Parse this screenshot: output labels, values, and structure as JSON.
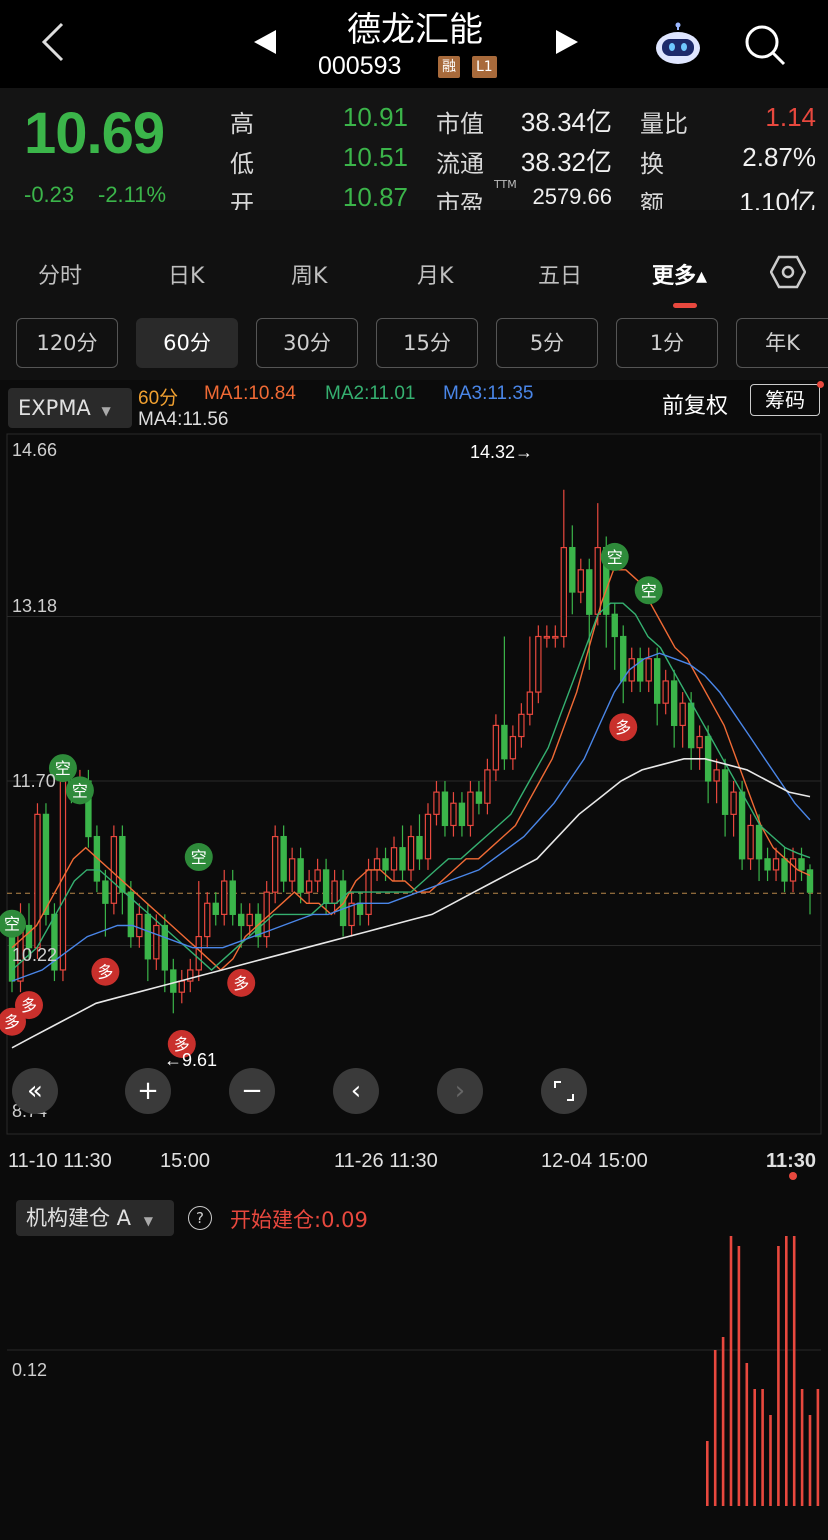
{
  "header": {
    "stock_name": "德龙汇能",
    "stock_code": "000593",
    "tag_margin": "融",
    "tag_level": "L1",
    "back_icon": "chevron-left-icon",
    "prev_icon": "triangle-left-icon",
    "next_icon": "triangle-right-icon",
    "assistant_icon": "robot-icon",
    "search_icon": "search-icon"
  },
  "quote": {
    "price": "10.69",
    "change": "-0.23",
    "change_pct": "-2.11%",
    "high_label": "高",
    "high": "10.91",
    "low_label": "低",
    "low": "10.51",
    "open_label": "开",
    "open": "10.87",
    "mcap_label": "市值",
    "mcap": "38.34亿",
    "float_label": "流通",
    "float": "38.32亿",
    "pe_label": "市盈",
    "pe_sup": "TTM",
    "pe": "2579.66",
    "vol_ratio_label": "量比",
    "vol_ratio": "1.14",
    "turnover_label": "换",
    "turnover": "2.87%",
    "amount_label": "额",
    "amount": "1.10亿"
  },
  "tabs": [
    "分时",
    "日K",
    "周K",
    "月K",
    "五日",
    "更多▴"
  ],
  "settings_icon": "hexagon-settings-icon",
  "periods": [
    "120分",
    "60分",
    "30分",
    "15分",
    "5分",
    "1分",
    "年K"
  ],
  "selected_period": "60分",
  "indicator": {
    "name": "EXPMA",
    "period": "60分",
    "ma1": "MA1:10.84",
    "ma2": "MA2:11.01",
    "ma3": "MA3:11.35",
    "ma4": "MA4:11.56",
    "adjust": "前复权",
    "chip": "筹码"
  },
  "colors": {
    "up": "#e8483e",
    "down": "#3bb54a",
    "ma1": "#f06a35",
    "ma2": "#35b070",
    "ma3": "#4a86e8",
    "ma4": "#e8e8e8",
    "mark_empty": "#2e8b3a",
    "mark_more": "#c9302c"
  },
  "chart_data": {
    "type": "candlestick",
    "y_axis_labels": [
      "14.66",
      "13.18",
      "11.70",
      "10.22",
      "8.74"
    ],
    "ylim": [
      8.74,
      14.66
    ],
    "x_axis_labels": [
      "11-10 11:30",
      "15:00",
      "11-26 11:30",
      "12-04 15:00",
      "11:30"
    ],
    "annotations": {
      "high": "14.32→",
      "low": "←9.61"
    },
    "last_close_line": 10.69,
    "candles": [
      [
        10.3,
        9.9,
        10.4,
        9.8
      ],
      [
        9.9,
        10.4,
        10.6,
        9.8
      ],
      [
        10.4,
        10.2,
        10.6,
        10.1
      ],
      [
        10.2,
        11.4,
        11.5,
        10.1
      ],
      [
        11.4,
        10.5,
        11.5,
        10.4
      ],
      [
        10.5,
        10.0,
        10.6,
        9.9
      ],
      [
        10.0,
        11.7,
        11.8,
        9.9
      ],
      [
        11.7,
        11.6,
        11.8,
        11.5
      ],
      [
        11.6,
        11.7,
        11.8,
        11.5
      ],
      [
        11.7,
        11.2,
        11.8,
        11.1
      ],
      [
        11.2,
        10.8,
        11.3,
        10.7
      ],
      [
        10.8,
        10.6,
        10.9,
        10.3
      ],
      [
        10.6,
        11.2,
        11.3,
        10.5
      ],
      [
        11.2,
        10.7,
        11.3,
        10.5
      ],
      [
        10.7,
        10.3,
        10.8,
        10.2
      ],
      [
        10.3,
        10.5,
        10.6,
        10.2
      ],
      [
        10.5,
        10.1,
        10.6,
        9.9
      ],
      [
        10.1,
        10.4,
        10.5,
        10.0
      ],
      [
        10.4,
        10.0,
        10.5,
        9.8
      ],
      [
        10.0,
        9.8,
        10.1,
        9.61
      ],
      [
        9.8,
        9.9,
        10.0,
        9.7
      ],
      [
        9.9,
        10.0,
        10.1,
        9.8
      ],
      [
        10.0,
        10.3,
        10.8,
        9.9
      ],
      [
        10.3,
        10.6,
        10.7,
        10.2
      ],
      [
        10.6,
        10.5,
        10.7,
        10.4
      ],
      [
        10.5,
        10.8,
        10.9,
        10.4
      ],
      [
        10.8,
        10.5,
        10.9,
        10.4
      ],
      [
        10.5,
        10.4,
        10.6,
        10.2
      ],
      [
        10.4,
        10.5,
        10.6,
        10.3
      ],
      [
        10.5,
        10.3,
        10.6,
        10.2
      ],
      [
        10.3,
        10.7,
        10.8,
        10.2
      ],
      [
        10.7,
        11.2,
        11.3,
        10.6
      ],
      [
        11.2,
        10.8,
        11.3,
        10.7
      ],
      [
        10.8,
        11.0,
        11.1,
        10.7
      ],
      [
        11.0,
        10.7,
        11.1,
        10.6
      ],
      [
        10.7,
        10.8,
        10.9,
        10.6
      ],
      [
        10.8,
        10.9,
        11.0,
        10.7
      ],
      [
        10.9,
        10.6,
        11.0,
        10.5
      ],
      [
        10.6,
        10.8,
        10.9,
        10.5
      ],
      [
        10.8,
        10.4,
        10.9,
        10.3
      ],
      [
        10.4,
        10.6,
        10.7,
        10.3
      ],
      [
        10.6,
        10.5,
        10.7,
        10.4
      ],
      [
        10.5,
        10.9,
        11.0,
        10.4
      ],
      [
        10.9,
        11.0,
        11.1,
        10.8
      ],
      [
        11.0,
        10.9,
        11.1,
        10.8
      ],
      [
        10.9,
        11.1,
        11.2,
        10.8
      ],
      [
        11.1,
        10.9,
        11.3,
        10.8
      ],
      [
        10.9,
        11.2,
        11.3,
        10.8
      ],
      [
        11.2,
        11.0,
        11.4,
        10.9
      ],
      [
        11.0,
        11.4,
        11.5,
        10.9
      ],
      [
        11.4,
        11.6,
        11.7,
        11.3
      ],
      [
        11.6,
        11.3,
        11.7,
        11.2
      ],
      [
        11.3,
        11.5,
        11.6,
        11.2
      ],
      [
        11.5,
        11.3,
        11.6,
        11.2
      ],
      [
        11.3,
        11.6,
        11.7,
        11.2
      ],
      [
        11.6,
        11.5,
        11.7,
        11.4
      ],
      [
        11.5,
        11.8,
        11.9,
        11.4
      ],
      [
        11.8,
        12.2,
        12.3,
        11.7
      ],
      [
        12.2,
        11.9,
        13.0,
        11.8
      ],
      [
        11.9,
        12.1,
        12.2,
        11.8
      ],
      [
        12.1,
        12.3,
        12.4,
        12.0
      ],
      [
        12.3,
        12.5,
        13.0,
        12.2
      ],
      [
        12.5,
        13.0,
        13.1,
        12.4
      ],
      [
        13.0,
        13.0,
        13.1,
        12.9
      ],
      [
        13.0,
        13.0,
        13.1,
        12.9
      ],
      [
        13.0,
        13.8,
        14.32,
        12.9
      ],
      [
        13.8,
        13.4,
        14.0,
        13.2
      ],
      [
        13.4,
        13.6,
        13.7,
        13.3
      ],
      [
        13.6,
        13.2,
        13.7,
        12.7
      ],
      [
        13.2,
        13.8,
        14.2,
        13.1
      ],
      [
        13.8,
        13.2,
        13.9,
        12.9
      ],
      [
        13.2,
        13.0,
        13.3,
        12.7
      ],
      [
        13.0,
        12.6,
        13.1,
        12.4
      ],
      [
        12.6,
        12.8,
        12.9,
        12.5
      ],
      [
        12.8,
        12.6,
        12.9,
        12.5
      ],
      [
        12.6,
        12.8,
        12.9,
        12.5
      ],
      [
        12.8,
        12.4,
        12.9,
        12.2
      ],
      [
        12.4,
        12.6,
        12.7,
        12.3
      ],
      [
        12.6,
        12.2,
        12.7,
        12.0
      ],
      [
        12.2,
        12.4,
        12.5,
        12.0
      ],
      [
        12.4,
        12.0,
        12.5,
        11.8
      ],
      [
        12.0,
        12.1,
        12.2,
        11.8
      ],
      [
        12.1,
        11.7,
        12.2,
        11.5
      ],
      [
        11.7,
        11.8,
        11.9,
        11.5
      ],
      [
        11.8,
        11.4,
        11.9,
        11.2
      ],
      [
        11.4,
        11.6,
        11.7,
        11.2
      ],
      [
        11.6,
        11.0,
        11.7,
        10.9
      ],
      [
        11.0,
        11.3,
        11.4,
        10.9
      ],
      [
        11.3,
        11.0,
        11.4,
        10.8
      ],
      [
        11.0,
        10.9,
        11.1,
        10.8
      ],
      [
        10.9,
        11.0,
        11.1,
        10.8
      ],
      [
        11.0,
        10.8,
        11.1,
        10.7
      ],
      [
        10.8,
        11.0,
        11.1,
        10.7
      ],
      [
        11.0,
        10.9,
        11.1,
        10.8
      ],
      [
        10.9,
        10.7,
        10.95,
        10.5
      ]
    ],
    "ma_series": {
      "MA1": [
        10.2,
        10.3,
        10.4,
        10.6,
        10.8,
        11.0,
        11.1,
        11.0,
        10.9,
        10.8,
        10.7,
        10.6,
        10.5,
        10.4,
        10.3,
        10.2,
        10.1,
        10.0,
        10.1,
        10.3,
        10.4,
        10.5,
        10.6,
        10.7,
        10.6,
        10.6,
        10.5,
        10.6,
        10.8,
        10.9,
        10.9,
        10.8,
        10.8,
        10.7,
        10.7,
        10.8,
        10.9,
        11.0,
        11.0,
        11.1,
        11.2,
        11.3,
        11.5,
        11.7,
        11.9,
        12.2,
        12.5,
        12.9,
        13.3,
        13.6,
        13.6,
        13.5,
        13.3,
        13.1,
        12.9,
        12.8,
        12.6,
        12.4,
        12.2,
        11.9,
        11.6,
        11.3,
        11.1,
        11.0,
        10.9,
        10.85
      ],
      "MA2": [
        10.0,
        10.1,
        10.2,
        10.4,
        10.6,
        10.8,
        10.9,
        10.9,
        10.8,
        10.7,
        10.6,
        10.5,
        10.4,
        10.3,
        10.2,
        10.1,
        10.0,
        10.1,
        10.2,
        10.3,
        10.4,
        10.5,
        10.5,
        10.5,
        10.5,
        10.6,
        10.6,
        10.7,
        10.7,
        10.7,
        10.7,
        10.7,
        10.7,
        10.8,
        10.9,
        11.0,
        11.0,
        11.1,
        11.2,
        11.3,
        11.4,
        11.6,
        11.8,
        12.0,
        12.3,
        12.6,
        12.9,
        13.2,
        13.3,
        13.3,
        13.2,
        13.0,
        12.9,
        12.7,
        12.5,
        12.3,
        12.1,
        11.9,
        11.7,
        11.5,
        11.3,
        11.2,
        11.1,
        11.05,
        11.01
      ],
      "MA3": [
        9.9,
        9.95,
        10.0,
        10.1,
        10.2,
        10.3,
        10.35,
        10.4,
        10.4,
        10.35,
        10.3,
        10.25,
        10.2,
        10.2,
        10.2,
        10.25,
        10.3,
        10.35,
        10.4,
        10.45,
        10.5,
        10.5,
        10.55,
        10.6,
        10.6,
        10.6,
        10.65,
        10.7,
        10.75,
        10.8,
        10.85,
        10.9,
        11.0,
        11.1,
        11.2,
        11.35,
        11.5,
        11.7,
        11.9,
        12.2,
        12.5,
        12.7,
        12.8,
        12.85,
        12.8,
        12.75,
        12.65,
        12.5,
        12.3,
        12.1,
        11.9,
        11.7,
        11.5,
        11.35
      ],
      "MA4": [
        9.3,
        9.4,
        9.5,
        9.6,
        9.7,
        9.75,
        9.8,
        9.85,
        9.9,
        9.95,
        10.0,
        10.05,
        10.1,
        10.15,
        10.2,
        10.25,
        10.3,
        10.35,
        10.4,
        10.45,
        10.5,
        10.6,
        10.7,
        10.8,
        10.9,
        11.0,
        11.2,
        11.4,
        11.55,
        11.7,
        11.8,
        11.85,
        11.9,
        11.9,
        11.85,
        11.8,
        11.7,
        11.6,
        11.56
      ]
    },
    "signals": {
      "empty_label": "空",
      "more_label": "多"
    }
  },
  "controls": {
    "fast_back_icon": "double-chevron-left-icon",
    "zoom_in_icon": "plus-icon",
    "zoom_out_icon": "minus-icon",
    "prev_icon": "chevron-left-icon",
    "next_icon": "chevron-right-icon",
    "fullscreen_icon": "fullscreen-icon"
  },
  "sub_indicator": {
    "name": "机构建仓 A",
    "help_icon": "question-circle-icon",
    "signal": "开始建仓:0.09",
    "y_label": "0.12",
    "bar_values": [
      0.05,
      0.12,
      0.13,
      0.21,
      0.2,
      0.11,
      0.09,
      0.09,
      0.07,
      0.2,
      0.21,
      0.21,
      0.09,
      0.07,
      0.09
    ]
  }
}
